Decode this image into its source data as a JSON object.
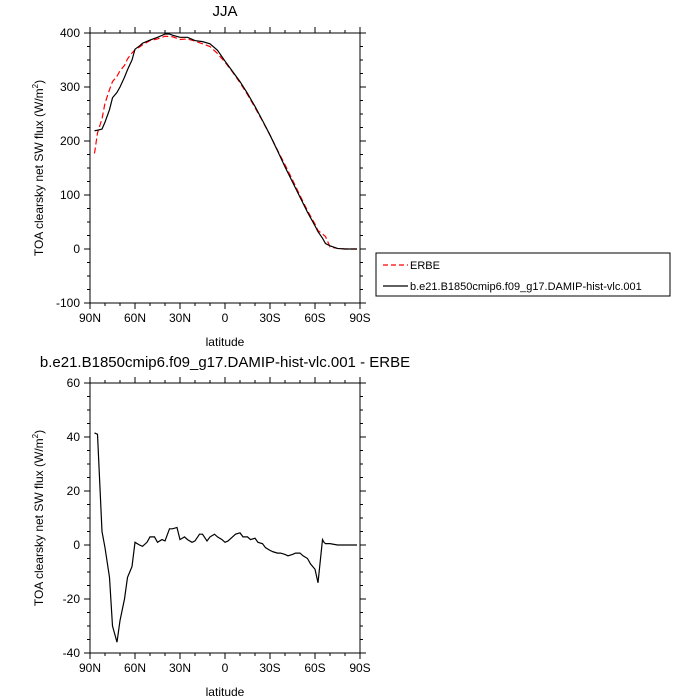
{
  "chart_data": [
    {
      "type": "line",
      "title": "JJA",
      "xlabel": "latitude",
      "ylabel": "TOA clearsky net SW flux",
      "ylabel_unit": "(W/m",
      "ylabel_unit_sup": "2",
      "ylabel_unit_close": ")",
      "xlim": [
        90,
        -90
      ],
      "ylim": [
        -100,
        400
      ],
      "x_ticks": [
        90,
        60,
        30,
        0,
        -30,
        -60,
        -90
      ],
      "x_tick_labels": [
        "90N",
        "60N",
        "30N",
        "0",
        "30S",
        "60S",
        "90S"
      ],
      "y_ticks": [
        -100,
        0,
        100,
        200,
        300,
        400
      ],
      "y_tick_labels": [
        "-100",
        "0",
        "100",
        "200",
        "300",
        "400"
      ],
      "grid": false,
      "legend_position": "outside-right",
      "series": [
        {
          "name": "ERBE",
          "color": "#ff0000",
          "dash": "dashed",
          "x": [
            87,
            85,
            82,
            80,
            77,
            75,
            72,
            70,
            67,
            65,
            62,
            60,
            57,
            55,
            50,
            45,
            40,
            35,
            30,
            25,
            20,
            15,
            10,
            5,
            0,
            -5,
            -10,
            -15,
            -20,
            -25,
            -30,
            -35,
            -40,
            -45,
            -50,
            -55,
            -60,
            -62,
            -65,
            -67,
            -70,
            -75,
            -80,
            -85,
            -88
          ],
          "y": [
            177,
            215,
            241,
            270,
            295,
            310,
            320,
            330,
            340,
            352,
            363,
            369,
            374,
            378,
            386,
            389,
            394,
            393,
            388,
            389,
            385,
            380,
            375,
            362,
            346,
            328,
            308,
            286,
            262,
            237,
            211,
            183,
            156,
            128,
            99,
            71,
            46,
            34,
            28,
            23,
            4,
            1,
            0,
            0,
            0
          ]
        },
        {
          "name": "b.e21.B1850cmip6.f09_g17.DAMIP-hist-vlc.001",
          "color": "#000000",
          "dash": "solid",
          "x": [
            87,
            85,
            82,
            80,
            77,
            75,
            72,
            70,
            67,
            65,
            62,
            60,
            57,
            55,
            50,
            45,
            40,
            37,
            35,
            30,
            25,
            20,
            15,
            10,
            5,
            0,
            -5,
            -10,
            -15,
            -20,
            -25,
            -30,
            -35,
            -40,
            -45,
            -50,
            -55,
            -60,
            -62,
            -65,
            -67,
            -70,
            -75,
            -80,
            -85,
            -88
          ],
          "y": [
            219,
            220,
            222,
            235,
            258,
            280,
            290,
            300,
            318,
            332,
            350,
            370,
            376,
            381,
            387,
            392,
            398,
            398,
            396,
            392,
            392,
            386,
            384,
            380,
            368,
            348,
            329,
            310,
            288,
            264,
            238,
            211,
            182,
            152,
            124,
            96,
            68,
            43,
            32,
            20,
            10,
            6,
            1,
            0,
            0,
            0
          ]
        }
      ]
    },
    {
      "type": "line",
      "title": "b.e21.B1850cmip6.f09_g17.DAMIP-hist-vlc.001 - ERBE",
      "xlabel": "latitude",
      "ylabel": "TOA clearsky net SW flux",
      "ylabel_unit": "(W/m",
      "ylabel_unit_sup": "2",
      "ylabel_unit_close": ")",
      "xlim": [
        90,
        -90
      ],
      "ylim": [
        -40,
        60
      ],
      "x_ticks": [
        90,
        60,
        30,
        0,
        -30,
        -60,
        -90
      ],
      "x_tick_labels": [
        "90N",
        "60N",
        "30N",
        "0",
        "30S",
        "60S",
        "90S"
      ],
      "y_ticks": [
        -40,
        -20,
        0,
        20,
        40,
        60
      ],
      "y_tick_labels": [
        "-40",
        "-20",
        "0",
        "20",
        "40",
        "60"
      ],
      "grid": false,
      "series": [
        {
          "color": "#000000",
          "dash": "solid",
          "x": [
            87,
            85,
            82,
            80,
            77,
            75,
            72,
            70,
            67,
            65,
            62,
            60,
            57,
            55,
            52,
            50,
            47,
            45,
            42,
            40,
            37,
            35,
            32,
            30,
            27,
            25,
            22,
            20,
            17,
            15,
            12,
            10,
            7,
            5,
            2,
            0,
            -2,
            -5,
            -7,
            -10,
            -12,
            -15,
            -17,
            -20,
            -22,
            -25,
            -27,
            -30,
            -32,
            -35,
            -37,
            -40,
            -42,
            -45,
            -47,
            -50,
            -52,
            -55,
            -57,
            -60,
            -62,
            -65,
            -66,
            -67,
            -70,
            -75,
            -80,
            -85,
            -88
          ],
          "y": [
            41.5,
            41,
            5,
            -1,
            -12,
            -30,
            -36,
            -28,
            -20,
            -12,
            -8,
            1,
            0,
            -0.5,
            1,
            3,
            3,
            1,
            2,
            1.5,
            6,
            6,
            6.5,
            2,
            3,
            2,
            1,
            1.5,
            4,
            4,
            1.5,
            3,
            4,
            3,
            2,
            1,
            1.5,
            3,
            4,
            4.5,
            3,
            3,
            2,
            2.5,
            1,
            0.5,
            -1,
            -2,
            -2.5,
            -3,
            -3,
            -3.5,
            -4,
            -3.5,
            -3,
            -3,
            -4,
            -5,
            -7,
            -9,
            -14,
            2,
            1,
            0.5,
            0.5,
            0,
            0,
            0,
            0
          ]
        }
      ]
    }
  ]
}
